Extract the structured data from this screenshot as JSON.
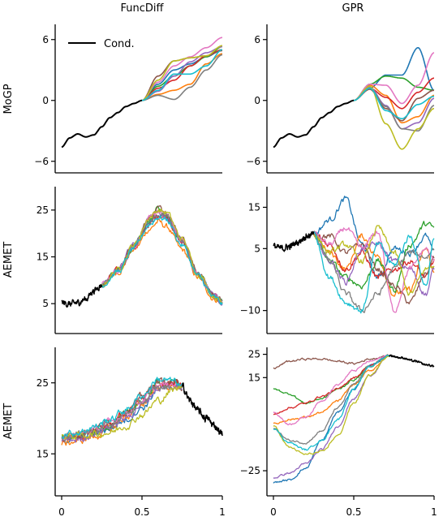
{
  "columns": [
    "FuncDiff",
    "GPR"
  ],
  "rows": [
    "MoGP",
    "AEMET",
    "AEMET"
  ],
  "legend": {
    "label": "Cond.",
    "color": "#000000"
  },
  "series_colors": [
    "#1f77b4",
    "#ff7f0e",
    "#2ca02c",
    "#d62728",
    "#9467bd",
    "#8c564b",
    "#e377c2",
    "#7f7f7f",
    "#bcbd22",
    "#17becf"
  ],
  "chart_data": [
    {
      "type": "line",
      "row": 0,
      "col": 0,
      "column_title": "FuncDiff",
      "ylabel": "MoGP",
      "xlim": [
        0,
        1
      ],
      "ylim": [
        -6.5,
        7.5
      ],
      "yticks": [
        -6,
        0,
        6
      ],
      "ytick_labels": [
        "−6",
        "0",
        "6"
      ],
      "xticks": [
        0,
        0.5,
        1
      ],
      "xtick_labels": [
        "0",
        "0.5",
        "1"
      ],
      "show_xticks": false,
      "legend": true,
      "noise": 0,
      "split_x": 0.5,
      "cond_side": "left",
      "conditioning": {
        "x": [
          0,
          0.05,
          0.1,
          0.15,
          0.2,
          0.25,
          0.3,
          0.35,
          0.4,
          0.45,
          0.5
        ],
        "y": [
          -4.6,
          -3.7,
          -3.3,
          -3.6,
          -3.4,
          -2.6,
          -1.7,
          -1.2,
          -0.6,
          -0.3,
          0
        ]
      },
      "samples_x": [
        0.5,
        0.6,
        0.7,
        0.8,
        0.9,
        1.0
      ],
      "samples": [
        [
          0,
          1.6,
          3.0,
          3.6,
          4.3,
          5.0
        ],
        [
          0,
          0.6,
          1.0,
          1.6,
          3.6,
          4.6
        ],
        [
          0,
          1.4,
          2.4,
          3.4,
          4.3,
          5.3
        ],
        [
          0,
          1.2,
          2.0,
          3.4,
          4.4,
          5.0
        ],
        [
          0,
          0.9,
          2.4,
          3.8,
          4.7,
          5.3
        ],
        [
          0,
          2.4,
          3.9,
          4.2,
          4.4,
          4.9
        ],
        [
          0,
          1.8,
          3.4,
          4.3,
          5.2,
          6.2
        ],
        [
          0,
          0.5,
          0.1,
          1.3,
          3.0,
          4.5
        ],
        [
          0,
          2.0,
          3.9,
          4.2,
          4.4,
          5.4
        ],
        [
          0,
          1.0,
          2.6,
          2.6,
          3.4,
          5.0
        ]
      ]
    },
    {
      "type": "line",
      "row": 0,
      "col": 1,
      "column_title": "GPR",
      "ylabel": "",
      "xlim": [
        0,
        1
      ],
      "ylim": [
        -6.5,
        7.5
      ],
      "yticks": [
        -6,
        0,
        6
      ],
      "ytick_labels": [
        "−6",
        "0",
        "6"
      ],
      "xticks": [
        0,
        0.5,
        1
      ],
      "xtick_labels": [
        "0",
        "0.5",
        "1"
      ],
      "show_xticks": false,
      "legend": false,
      "noise": 0,
      "split_x": 0.5,
      "cond_side": "left",
      "conditioning": {
        "x": [
          0,
          0.05,
          0.1,
          0.15,
          0.2,
          0.25,
          0.3,
          0.35,
          0.4,
          0.45,
          0.5
        ],
        "y": [
          -4.6,
          -3.7,
          -3.3,
          -3.6,
          -3.4,
          -2.6,
          -1.7,
          -1.2,
          -0.6,
          -0.3,
          0
        ]
      },
      "samples_x": [
        0.5,
        0.6,
        0.7,
        0.8,
        0.9,
        1.0
      ],
      "samples": [
        [
          0,
          1.2,
          2.5,
          2.5,
          5.2,
          1.0
        ],
        [
          0,
          1.5,
          0.5,
          -2.2,
          -1.6,
          0.5
        ],
        [
          0,
          1.6,
          2.4,
          2.2,
          1.3,
          1.0
        ],
        [
          0,
          1.2,
          0.3,
          -0.8,
          0.8,
          2.2
        ],
        [
          0,
          1.3,
          -0.5,
          -2.8,
          -2.2,
          0.2
        ],
        [
          0,
          1.1,
          -0.8,
          -2.0,
          0.2,
          1.0
        ],
        [
          0,
          1.6,
          1.5,
          -0.3,
          1.5,
          4.7
        ],
        [
          0,
          1.2,
          -0.6,
          -2.8,
          -3.0,
          -0.5
        ],
        [
          0,
          1.4,
          -2.3,
          -4.8,
          -2.8,
          -0.8
        ],
        [
          0,
          1.2,
          -1.0,
          -1.8,
          -0.4,
          0.4
        ]
      ]
    },
    {
      "type": "line",
      "row": 1,
      "col": 0,
      "column_title": "FuncDiff",
      "ylabel": "AEMET",
      "xlim": [
        0,
        1
      ],
      "ylim": [
        0,
        30
      ],
      "yticks": [
        5,
        15,
        25
      ],
      "ytick_labels": [
        "5",
        "15",
        "25"
      ],
      "xticks": [
        0,
        0.5,
        1
      ],
      "xtick_labels": [
        "0",
        "0.5",
        "1"
      ],
      "show_xticks": false,
      "legend": false,
      "noise": 0.5,
      "split_x": 0.25,
      "cond_side": "left",
      "conditioning": {
        "x": [
          0,
          0.05,
          0.1,
          0.15,
          0.2,
          0.25
        ],
        "y": [
          5.2,
          4.9,
          5.2,
          6.0,
          7.8,
          9.0
        ]
      },
      "samples_x": [
        0.25,
        0.35,
        0.45,
        0.55,
        0.6,
        0.65,
        0.75,
        0.85,
        0.95,
        1.0
      ],
      "samples": [
        [
          9.0,
          12.0,
          17.0,
          22.5,
          24.0,
          23.5,
          18.0,
          11.0,
          6.5,
          5.2
        ],
        [
          9.0,
          11.8,
          16.5,
          21.0,
          22.5,
          21.5,
          16.5,
          10.5,
          6.0,
          5.0
        ],
        [
          9.0,
          12.2,
          17.2,
          23.0,
          25.2,
          24.0,
          18.5,
          11.5,
          6.5,
          5.3
        ],
        [
          9.0,
          12.0,
          17.0,
          22.0,
          24.0,
          23.5,
          18.0,
          11.0,
          6.5,
          5.3
        ],
        [
          9.0,
          12.2,
          17.5,
          23.0,
          24.5,
          23.5,
          18.3,
          11.2,
          6.5,
          5.2
        ],
        [
          9.0,
          12.3,
          17.6,
          23.5,
          25.5,
          24.5,
          19.0,
          11.5,
          6.8,
          5.5
        ],
        [
          9.0,
          12.1,
          17.3,
          23.0,
          24.8,
          24.0,
          18.5,
          11.3,
          6.6,
          5.3
        ],
        [
          9.0,
          12.0,
          17.2,
          22.5,
          24.3,
          23.8,
          18.2,
          11.2,
          6.5,
          5.2
        ],
        [
          9.0,
          12.2,
          17.6,
          23.5,
          25.0,
          24.5,
          18.8,
          11.4,
          6.6,
          5.3
        ],
        [
          9.0,
          11.8,
          16.8,
          22.0,
          23.5,
          23.0,
          17.5,
          10.8,
          6.2,
          5.0
        ]
      ]
    },
    {
      "type": "line",
      "row": 1,
      "col": 1,
      "column_title": "GPR",
      "ylabel": "",
      "xlim": [
        0,
        1
      ],
      "ylim": [
        -14,
        20
      ],
      "yticks": [
        -10,
        5,
        15
      ],
      "ytick_labels": [
        "−10",
        "5",
        "15"
      ],
      "xticks": [
        0,
        0.5,
        1
      ],
      "xtick_labels": [
        "0",
        "0.5",
        "1"
      ],
      "show_xticks": false,
      "legend": false,
      "noise": 0.6,
      "split_x": 0.25,
      "cond_side": "left",
      "conditioning": {
        "x": [
          0,
          0.05,
          0.1,
          0.15,
          0.2,
          0.25
        ],
        "y": [
          5.5,
          5.0,
          5.5,
          6.5,
          8.0,
          8.5
        ]
      },
      "samples_x": [
        0.25,
        0.35,
        0.45,
        0.55,
        0.65,
        0.75,
        0.85,
        0.95,
        1.0
      ],
      "samples": [
        [
          8.5,
          12.0,
          17.0,
          6.0,
          -2.0,
          5.0,
          4.0,
          8.0,
          4.0
        ],
        [
          8.5,
          4.0,
          0.0,
          8.0,
          3.0,
          -6.0,
          -5.0,
          5.0,
          -1.0
        ],
        [
          8.5,
          2.0,
          -2.0,
          -4.0,
          2.0,
          -5.0,
          6.0,
          11.0,
          10.0
        ],
        [
          8.5,
          6.0,
          0.0,
          4.0,
          -2.0,
          0.0,
          2.0,
          -2.0,
          2.0
        ],
        [
          8.5,
          2.0,
          -3.0,
          5.0,
          6.0,
          2.0,
          0.0,
          -6.0,
          0.0
        ],
        [
          8.5,
          8.0,
          4.0,
          6.0,
          0.0,
          -4.0,
          -8.0,
          -1.0,
          3.0
        ],
        [
          8.5,
          6.0,
          10.0,
          5.0,
          9.0,
          -10.0,
          0.0,
          5.0,
          2.0
        ],
        [
          8.5,
          2.0,
          -6.0,
          -10.0,
          -6.0,
          0.0,
          4.0,
          3.0,
          5.0
        ],
        [
          8.5,
          4.0,
          6.0,
          2.0,
          10.0,
          4.0,
          -6.0,
          0.0,
          1.0
        ],
        [
          8.5,
          -2.0,
          -8.0,
          -10.0,
          6.0,
          1.0,
          8.0,
          -4.0,
          8.0
        ]
      ]
    },
    {
      "type": "line",
      "row": 2,
      "col": 0,
      "column_title": "FuncDiff",
      "ylabel": "AEMET",
      "xlim": [
        0,
        1
      ],
      "ylim": [
        10,
        30
      ],
      "yticks": [
        15,
        25
      ],
      "ytick_labels": [
        "15",
        "25"
      ],
      "xticks": [
        0,
        0.5,
        1
      ],
      "xtick_labels": [
        "0",
        "0.5",
        "1"
      ],
      "show_xticks": true,
      "legend": false,
      "noise": 0.4,
      "split_x": 0.75,
      "cond_side": "right",
      "conditioning": {
        "x": [
          0.75,
          0.8,
          0.85,
          0.9,
          0.95,
          1.0
        ],
        "y": [
          24.5,
          22.5,
          21.0,
          20.0,
          19.0,
          17.8
        ]
      },
      "samples_x": [
        0,
        0.1,
        0.2,
        0.3,
        0.4,
        0.5,
        0.6,
        0.7,
        0.75
      ],
      "samples": [
        [
          17.0,
          17.2,
          17.8,
          18.6,
          19.8,
          21.5,
          24.0,
          25.0,
          24.5
        ],
        [
          16.5,
          16.8,
          17.4,
          18.5,
          20.2,
          22.0,
          24.5,
          24.5,
          24.5
        ],
        [
          17.2,
          17.5,
          18.0,
          19.0,
          20.5,
          22.5,
          25.0,
          25.0,
          24.5
        ],
        [
          17.0,
          17.5,
          18.2,
          19.2,
          20.8,
          22.8,
          24.8,
          24.8,
          24.5
        ],
        [
          17.0,
          17.0,
          17.8,
          18.8,
          20.0,
          22.0,
          24.2,
          24.3,
          24.5
        ],
        [
          17.5,
          17.8,
          18.5,
          19.5,
          21.0,
          23.0,
          25.2,
          25.0,
          24.5
        ],
        [
          17.3,
          17.6,
          18.4,
          19.4,
          20.8,
          22.5,
          24.6,
          24.6,
          24.5
        ],
        [
          17.4,
          17.7,
          18.3,
          19.0,
          20.6,
          22.3,
          24.3,
          24.4,
          24.5
        ],
        [
          17.5,
          17.5,
          17.8,
          18.0,
          19.0,
          20.5,
          22.5,
          24.0,
          24.5
        ],
        [
          17.8,
          18.0,
          18.8,
          19.8,
          21.2,
          23.2,
          25.5,
          25.2,
          24.5
        ]
      ]
    },
    {
      "type": "line",
      "row": 2,
      "col": 1,
      "column_title": "GPR",
      "ylabel": "",
      "xlim": [
        0,
        1
      ],
      "ylim": [
        -33,
        28
      ],
      "yticks": [
        -25,
        15,
        25
      ],
      "ytick_labels": [
        "−25",
        "15",
        "25"
      ],
      "xticks": [
        0,
        0.5,
        1
      ],
      "xtick_labels": [
        "0",
        "0.5",
        "1"
      ],
      "show_xticks": true,
      "legend": false,
      "noise": 0.35,
      "split_x": 0.72,
      "cond_side": "right",
      "conditioning": {
        "x": [
          0.72,
          0.8,
          0.88,
          0.95,
          1.0
        ],
        "y": [
          24.5,
          23.5,
          22.0,
          20.5,
          20.0
        ]
      },
      "samples_x": [
        0,
        0.1,
        0.2,
        0.3,
        0.4,
        0.5,
        0.6,
        0.72
      ],
      "samples": [
        [
          -30.0,
          -29.0,
          -24.0,
          -12.0,
          0.0,
          10.0,
          20.0,
          24.5
        ],
        [
          -5.0,
          -3.0,
          -2.0,
          0.0,
          5.0,
          12.0,
          18.0,
          24.5
        ],
        [
          10.0,
          8.0,
          4.0,
          6.0,
          10.0,
          14.0,
          20.0,
          24.5
        ],
        [
          -1.0,
          2.0,
          4.0,
          7.0,
          10.0,
          15.0,
          20.0,
          24.5
        ],
        [
          -28.0,
          -26.0,
          -22.0,
          -16.0,
          -6.0,
          6.0,
          16.0,
          24.5
        ],
        [
          19.0,
          22.0,
          23.0,
          23.0,
          22.0,
          21.0,
          23.0,
          24.5
        ],
        [
          0.0,
          -5.0,
          -2.0,
          5.0,
          12.0,
          18.0,
          22.0,
          24.5
        ],
        [
          -7.0,
          -12.0,
          -13.0,
          -8.0,
          2.0,
          12.0,
          20.0,
          24.5
        ],
        [
          -6.0,
          -15.0,
          -18.0,
          -17.0,
          -10.0,
          4.0,
          16.0,
          24.5
        ],
        [
          -7.0,
          -13.0,
          -16.0,
          -12.0,
          -3.0,
          10.0,
          20.0,
          24.5
        ]
      ]
    }
  ]
}
